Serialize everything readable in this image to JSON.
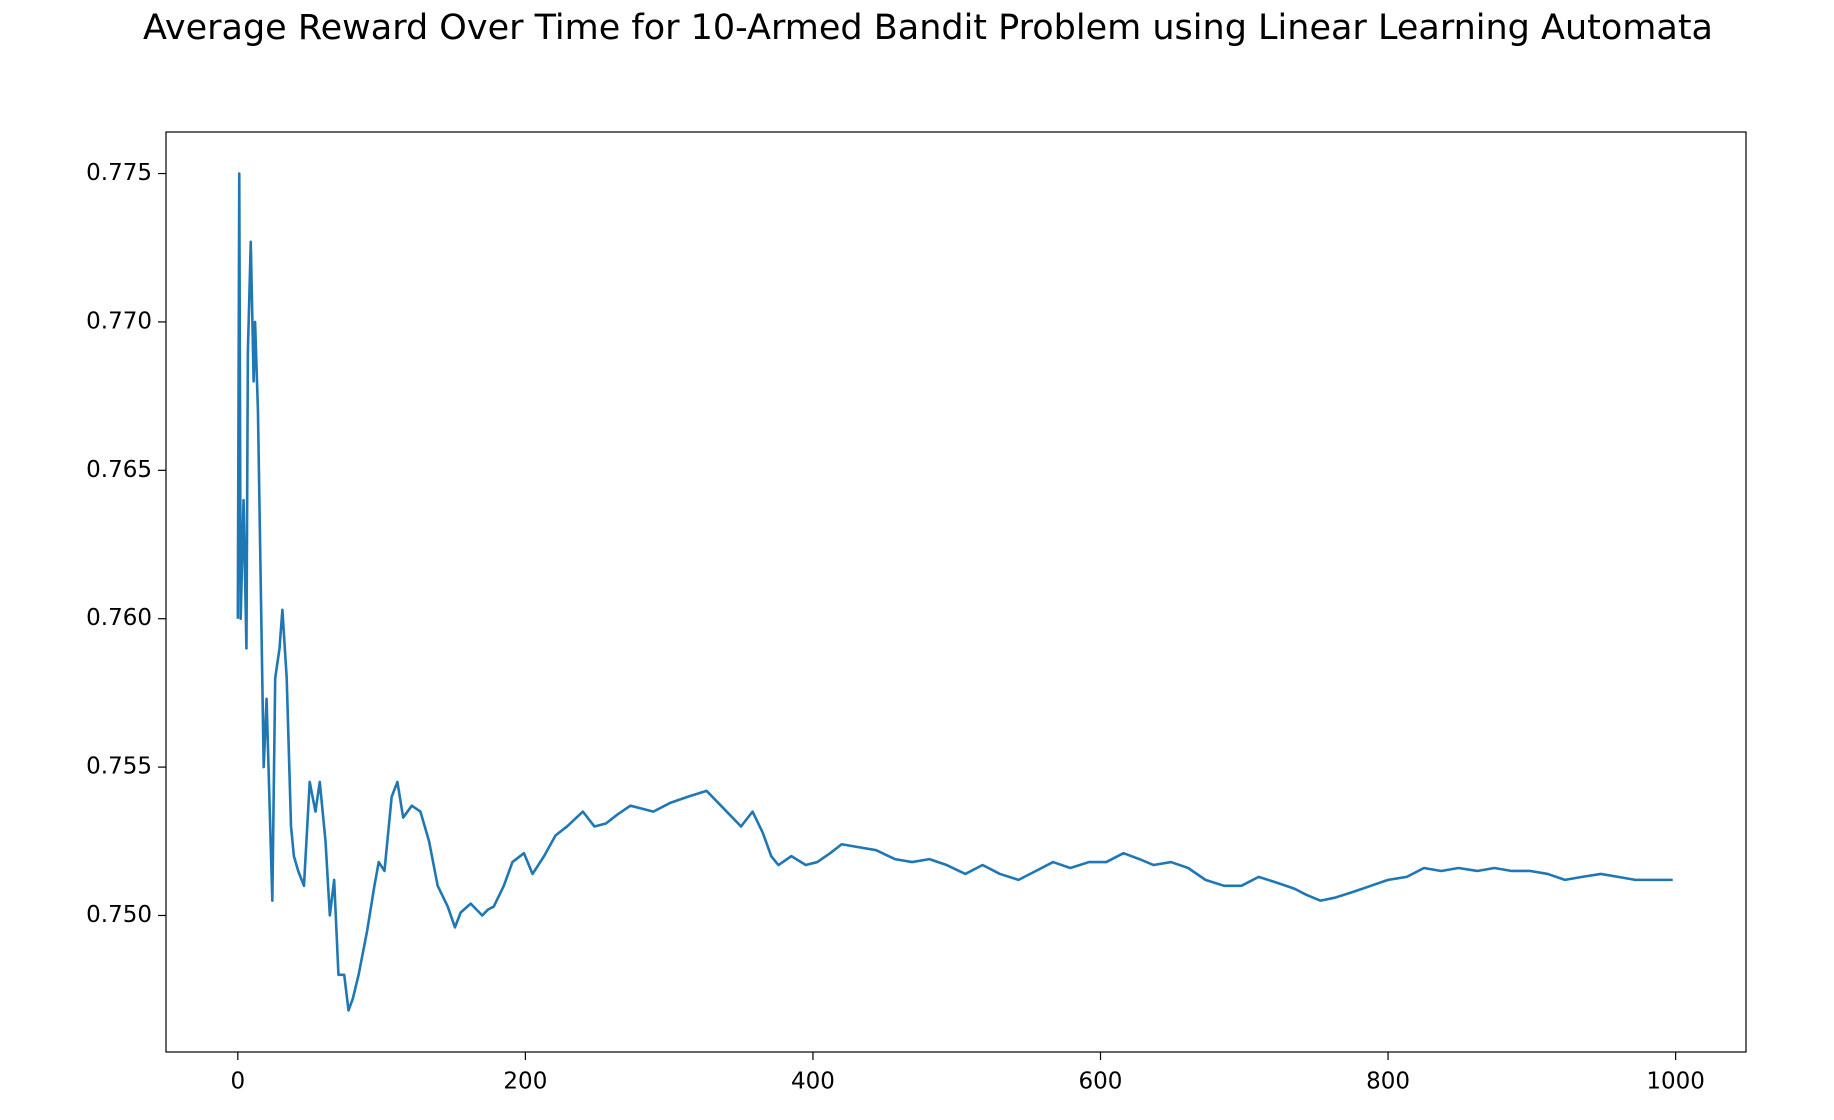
{
  "chart_data": {
    "type": "line",
    "title": "Average Reward Over Time for 10-Armed Bandit Problem using Linear Learning Automata",
    "x": [
      0,
      1,
      2,
      4,
      6,
      7,
      9,
      11,
      12,
      14,
      16,
      18,
      20,
      24,
      26,
      29,
      31,
      34,
      37,
      39,
      42,
      46,
      50,
      54,
      57,
      61,
      64,
      67,
      70,
      74,
      77,
      80,
      84,
      90,
      95,
      98,
      102,
      107,
      111,
      115,
      121,
      127,
      133,
      139,
      146,
      151,
      155,
      162,
      170,
      174,
      178,
      185,
      191,
      199,
      205,
      213,
      221,
      229,
      240,
      248,
      256,
      264,
      273,
      281,
      289,
      301,
      313,
      326,
      334,
      342,
      350,
      358,
      365,
      371,
      376,
      385,
      395,
      403,
      412,
      420,
      432,
      444,
      457,
      469,
      481,
      493,
      506,
      518,
      530,
      543,
      555,
      567,
      579,
      592,
      604,
      616,
      627,
      637,
      649,
      661,
      673,
      686,
      698,
      710,
      723,
      735,
      743,
      753,
      763,
      776,
      788,
      800,
      813,
      825,
      837,
      849,
      862,
      874,
      886,
      899,
      911,
      923,
      935,
      948,
      960,
      972,
      984,
      998
    ],
    "series": [
      {
        "name": "Average Reward",
        "color": "#1f77b4",
        "values": [
          0.76,
          0.775,
          0.76,
          0.764,
          0.759,
          0.769,
          0.7727,
          0.768,
          0.77,
          0.767,
          0.761,
          0.755,
          0.7573,
          0.7505,
          0.758,
          0.759,
          0.7603,
          0.758,
          0.753,
          0.752,
          0.7515,
          0.751,
          0.7545,
          0.7535,
          0.7545,
          0.7525,
          0.75,
          0.7512,
          0.748,
          0.748,
          0.7468,
          0.7472,
          0.748,
          0.7495,
          0.751,
          0.7518,
          0.7515,
          0.754,
          0.7545,
          0.7533,
          0.7537,
          0.7535,
          0.7525,
          0.751,
          0.7503,
          0.7496,
          0.7501,
          0.7504,
          0.75,
          0.7502,
          0.7503,
          0.751,
          0.7518,
          0.7521,
          0.7514,
          0.752,
          0.7527,
          0.753,
          0.7535,
          0.753,
          0.7531,
          0.7534,
          0.7537,
          0.7536,
          0.7535,
          0.7538,
          0.754,
          0.7542,
          0.7538,
          0.7534,
          0.753,
          0.7535,
          0.7528,
          0.752,
          0.7517,
          0.752,
          0.7517,
          0.7518,
          0.7521,
          0.7524,
          0.7523,
          0.7522,
          0.7519,
          0.7518,
          0.7519,
          0.7517,
          0.7514,
          0.7517,
          0.7514,
          0.7512,
          0.7515,
          0.7518,
          0.7516,
          0.7518,
          0.7518,
          0.7521,
          0.7519,
          0.7517,
          0.7518,
          0.7516,
          0.7512,
          0.751,
          0.751,
          0.7513,
          0.7511,
          0.7509,
          0.7507,
          0.7505,
          0.7506,
          0.7508,
          0.751,
          0.7512,
          0.7513,
          0.7516,
          0.7515,
          0.7516,
          0.7515,
          0.7516,
          0.7515,
          0.7515,
          0.7514,
          0.7512,
          0.7513,
          0.7514,
          0.7513,
          0.7512,
          0.7512,
          0.7512
        ]
      }
    ],
    "xlim": [
      -49.95,
      1048.95
    ],
    "xticks": [
      0,
      200,
      400,
      600,
      800,
      1000
    ],
    "ylim": [
      0.7454,
      0.7764
    ],
    "yticks": [
      {
        "value": 0.75,
        "label": "0.750"
      },
      0.755,
      {
        "value": 0.76,
        "label": "0.760"
      },
      0.765,
      {
        "value": 0.77,
        "label": "0.770"
      },
      0.775
    ],
    "grid": false
  }
}
